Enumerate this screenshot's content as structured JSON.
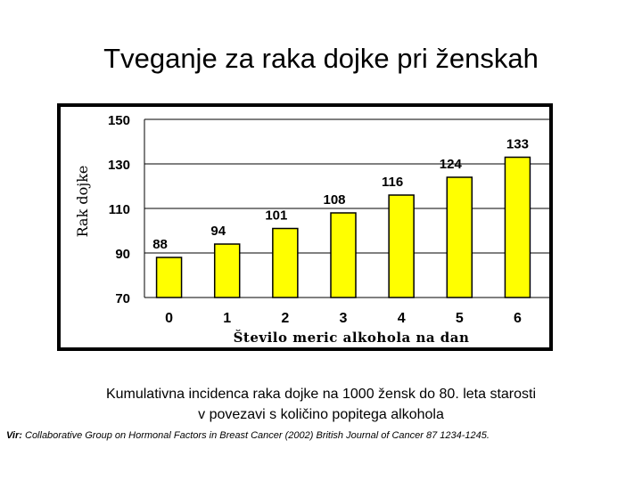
{
  "title": "Tveganje za raka dojke pri ženskah",
  "caption": {
    "line1": "Kumulativna incidenca raka dojke na 1000 žensk do 80. leta starosti",
    "line2": "v povezavi s količino popitega alkohola",
    "source_prefix": "Vir:",
    "source_text": " Collaborative Group on Hormonal Factors in Breast Cancer (2002) British Journal of Cancer 87 1234-1245."
  },
  "chart_data": {
    "type": "bar",
    "categories": [
      "0",
      "1",
      "2",
      "3",
      "4",
      "5",
      "6"
    ],
    "values": [
      88,
      94,
      101,
      108,
      116,
      124,
      133
    ],
    "value_labels": [
      "88",
      "94",
      "101",
      "108",
      "116",
      "124",
      "133"
    ],
    "xlabel": "Število meric alkohola na dan",
    "ylabel": "Rak dojke",
    "ylim": [
      70,
      150
    ],
    "yticks": [
      "70",
      "90",
      "110",
      "130",
      "150"
    ],
    "grid": true,
    "bar_color": "#ffff00",
    "bar_stroke": "#000000"
  }
}
